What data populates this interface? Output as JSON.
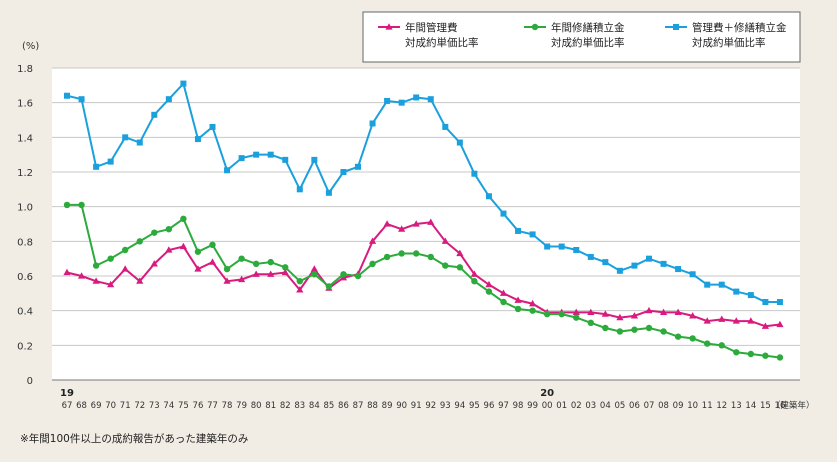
{
  "chart_data": {
    "type": "line",
    "y_unit": "(%)",
    "ylim": [
      0,
      1.8
    ],
    "y_ticks": [
      "0",
      "0.2",
      "0.4",
      "0.6",
      "0.8",
      "1.0",
      "1.2",
      "1.4",
      "1.6",
      "1.8"
    ],
    "grid": true,
    "legend_position": "top-right",
    "era_labels": [
      {
        "label": "19",
        "at_category": "67"
      },
      {
        "label": "20",
        "at_category": "00"
      }
    ],
    "x_unit": "（建築年）",
    "categories": [
      "67",
      "68",
      "69",
      "70",
      "71",
      "72",
      "73",
      "74",
      "75",
      "76",
      "77",
      "78",
      "79",
      "80",
      "81",
      "82",
      "83",
      "84",
      "85",
      "86",
      "87",
      "88",
      "89",
      "90",
      "91",
      "92",
      "93",
      "94",
      "95",
      "96",
      "97",
      "98",
      "99",
      "00",
      "01",
      "02",
      "03",
      "04",
      "05",
      "06",
      "07",
      "08",
      "09",
      "10",
      "11",
      "12",
      "13",
      "14",
      "15",
      "16"
    ],
    "series": [
      {
        "name_lines": [
          "年間管理費",
          "対成約単価比率"
        ],
        "color": "#d81b7e",
        "marker": "triangle",
        "values": [
          0.62,
          0.6,
          0.57,
          0.55,
          0.64,
          0.57,
          0.67,
          0.75,
          0.77,
          0.64,
          0.68,
          0.57,
          0.58,
          0.61,
          0.61,
          0.62,
          0.52,
          0.64,
          0.53,
          0.59,
          0.61,
          0.8,
          0.9,
          0.87,
          0.9,
          0.91,
          0.8,
          0.73,
          0.61,
          0.55,
          0.5,
          0.46,
          0.44,
          0.39,
          0.39,
          0.39,
          0.39,
          0.38,
          0.36,
          0.37,
          0.4,
          0.39,
          0.39,
          0.37,
          0.34,
          0.35,
          0.34,
          0.34,
          0.31,
          0.32
        ]
      },
      {
        "name_lines": [
          "年間修繕積立金",
          "対成約単価比率"
        ],
        "color": "#2daa3c",
        "marker": "circle",
        "values": [
          1.01,
          1.01,
          0.66,
          0.7,
          0.75,
          0.8,
          0.85,
          0.87,
          0.93,
          0.74,
          0.78,
          0.64,
          0.7,
          0.67,
          0.68,
          0.65,
          0.57,
          0.61,
          0.54,
          0.61,
          0.6,
          0.67,
          0.71,
          0.73,
          0.73,
          0.71,
          0.66,
          0.65,
          0.57,
          0.51,
          0.45,
          0.41,
          0.4,
          0.38,
          0.38,
          0.36,
          0.33,
          0.3,
          0.28,
          0.29,
          0.3,
          0.28,
          0.25,
          0.24,
          0.21,
          0.2,
          0.16,
          0.15,
          0.14,
          0.13
        ]
      },
      {
        "name_lines": [
          "管理費＋修繕積立金",
          "対成約単価比率"
        ],
        "color": "#1aa0dc",
        "marker": "square",
        "values": [
          1.64,
          1.62,
          1.23,
          1.26,
          1.4,
          1.37,
          1.53,
          1.62,
          1.71,
          1.39,
          1.46,
          1.21,
          1.28,
          1.3,
          1.3,
          1.27,
          1.1,
          1.27,
          1.08,
          1.2,
          1.23,
          1.48,
          1.61,
          1.6,
          1.63,
          1.62,
          1.46,
          1.37,
          1.19,
          1.06,
          0.96,
          0.86,
          0.84,
          0.77,
          0.77,
          0.75,
          0.71,
          0.68,
          0.63,
          0.66,
          0.7,
          0.67,
          0.64,
          0.61,
          0.55,
          0.55,
          0.51,
          0.49,
          0.45,
          0.45
        ]
      }
    ],
    "footnote": "※年間100件以上の成約報告があった建築年のみ"
  }
}
